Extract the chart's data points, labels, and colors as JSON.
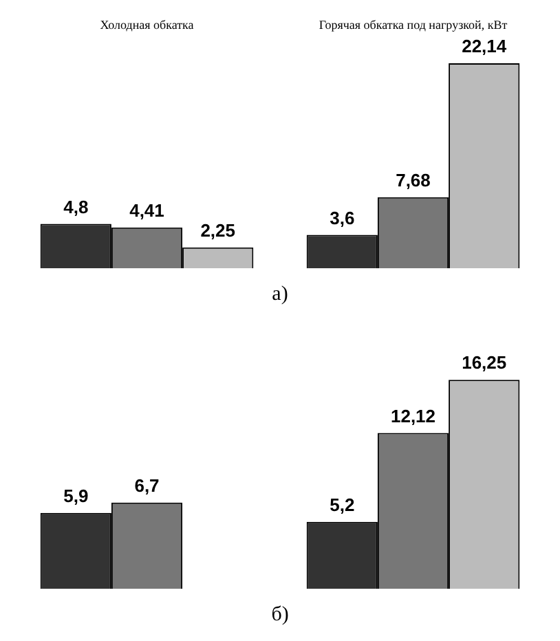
{
  "chart_data": [
    {
      "type": "bar",
      "title": "а)",
      "categories": [
        "Холодная обкатка",
        "Горячая обкатка под нагрузкой, кВт"
      ],
      "series": [
        {
          "color": "#333333",
          "values": [
            4.8,
            3.6
          ],
          "value_labels": [
            "4,8",
            "3,6"
          ]
        },
        {
          "color": "#777777",
          "values": [
            4.41,
            7.68
          ],
          "value_labels": [
            "4,41",
            "7,68"
          ]
        },
        {
          "color": "#bbbbbb",
          "values": [
            2.25,
            22.14
          ],
          "value_labels": [
            "2,25",
            "22,14"
          ]
        }
      ]
    },
    {
      "type": "bar",
      "title": "б)",
      "categories": [
        null,
        null
      ],
      "series": [
        {
          "color": "#333333",
          "values": [
            5.9,
            5.2
          ],
          "value_labels": [
            "5,9",
            "5,2"
          ]
        },
        {
          "color": "#777777",
          "values": [
            6.7,
            12.12
          ],
          "value_labels": [
            "6,7",
            "12,12"
          ]
        },
        {
          "color": "#bbbbbb",
          "values": [
            null,
            16.25
          ],
          "value_labels": [
            null,
            "16,25"
          ]
        }
      ]
    }
  ]
}
